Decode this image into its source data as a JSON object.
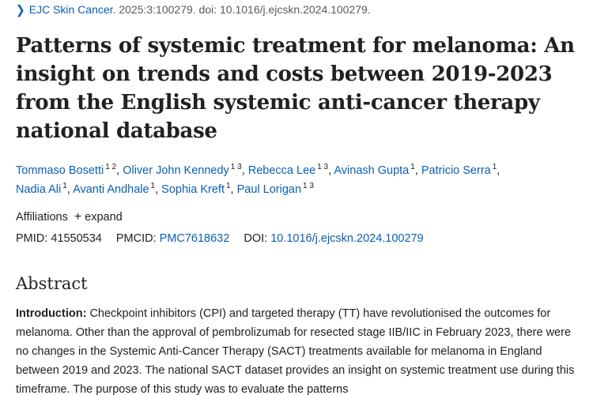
{
  "journal": {
    "name": "EJC Skin Cancer.",
    "citation": "2025:3:100279. doi: 10.1016/j.ejcskn.2024.100279."
  },
  "title": "Patterns of systemic treatment for melanoma: An insight on trends and costs between 2019-2023 from the English systemic anti-cancer therapy national database",
  "authors": [
    {
      "name": "Tommaso Bosetti",
      "aff": "1 2"
    },
    {
      "name": "Oliver John Kennedy",
      "aff": "1 3"
    },
    {
      "name": "Rebecca Lee",
      "aff": "1 3"
    },
    {
      "name": "Avinash Gupta",
      "aff": "1"
    },
    {
      "name": "Patricio Serra",
      "aff": "1"
    },
    {
      "name": "Nadia Ali",
      "aff": "1"
    },
    {
      "name": "Avanti Andhale",
      "aff": "1"
    },
    {
      "name": "Sophia Kreft",
      "aff": "1"
    },
    {
      "name": "Paul Lorigan",
      "aff": "1 3"
    }
  ],
  "affiliations": {
    "label": "Affiliations",
    "expand_label": "expand"
  },
  "ids": {
    "pmid_label": "PMID:",
    "pmid": "41550534",
    "pmcid_label": "PMCID:",
    "pmcid": "PMC7618632",
    "doi_label": "DOI:",
    "doi": "10.1016/j.ejcskn.2024.100279"
  },
  "abstract": {
    "heading": "Abstract",
    "intro_label": "Introduction:",
    "intro_text": "Checkpoint inhibitors (CPI) and targeted therapy (TT) have revolutionised the outcomes for melanoma. Other than the approval of pembrolizumab for resected stage IIB/IIC in February 2023, there were no changes in the Systemic Anti-Cancer Therapy (SACT) treatments available for melanoma in England between 2019 and 2023. The national SACT dataset provides an insight on systemic treatment use during this timeframe. The purpose of this study was to evaluate the patterns"
  },
  "colors": {
    "link": "#0b5fb3",
    "text": "#212121",
    "muted": "#5a5a5a"
  }
}
